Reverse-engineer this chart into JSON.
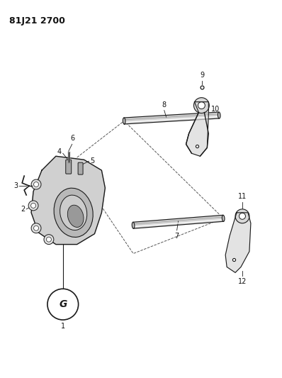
{
  "title": "81J21 2700",
  "bg_color": "#ffffff",
  "line_color": "#1a1a1a",
  "text_color": "#111111",
  "fig_width": 3.98,
  "fig_height": 5.33,
  "dpi": 100
}
